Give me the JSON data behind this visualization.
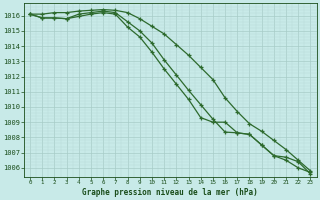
{
  "x": [
    0,
    1,
    2,
    3,
    4,
    5,
    6,
    7,
    8,
    9,
    10,
    11,
    12,
    13,
    14,
    15,
    16,
    17,
    18,
    19,
    20,
    21,
    22,
    23
  ],
  "line1": [
    1016.1,
    1016.1,
    1016.2,
    1016.2,
    1016.3,
    1016.35,
    1016.4,
    1016.35,
    1016.2,
    1015.8,
    1015.3,
    1014.8,
    1014.1,
    1013.4,
    1012.6,
    1011.8,
    1010.6,
    1009.7,
    1008.9,
    1008.4,
    1007.8,
    1007.2,
    1006.5,
    1005.8
  ],
  "line2": [
    1016.1,
    1015.85,
    1015.85,
    1015.8,
    1016.1,
    1016.2,
    1016.3,
    1016.2,
    1015.6,
    1015.0,
    1014.2,
    1013.1,
    1012.1,
    1011.1,
    1010.15,
    1009.2,
    1008.35,
    1008.3,
    1008.2,
    1007.5,
    1006.8,
    1006.7,
    1006.4,
    1005.6
  ],
  "line3": [
    1016.1,
    1015.85,
    1015.85,
    1015.8,
    1015.95,
    1016.1,
    1016.2,
    1016.1,
    1015.25,
    1014.6,
    1013.6,
    1012.5,
    1011.5,
    1010.5,
    1009.3,
    1009.0,
    1009.0,
    1008.3,
    1008.2,
    1007.5,
    1006.8,
    1006.5,
    1006.0,
    1005.7
  ],
  "line_color": "#2d6a2d",
  "bg_color": "#c8eae8",
  "grid_color_major": "#a8ccc8",
  "grid_color_minor": "#b8d8d6",
  "text_color": "#1a4d1a",
  "ylabel_values": [
    1006,
    1007,
    1008,
    1009,
    1010,
    1011,
    1012,
    1013,
    1014,
    1015,
    1016
  ],
  "xlabel": "Graphe pression niveau de la mer (hPa)",
  "ylim": [
    1005.4,
    1016.8
  ],
  "xlim": [
    -0.3,
    23.3
  ],
  "figsize": [
    3.2,
    2.0
  ],
  "dpi": 100
}
